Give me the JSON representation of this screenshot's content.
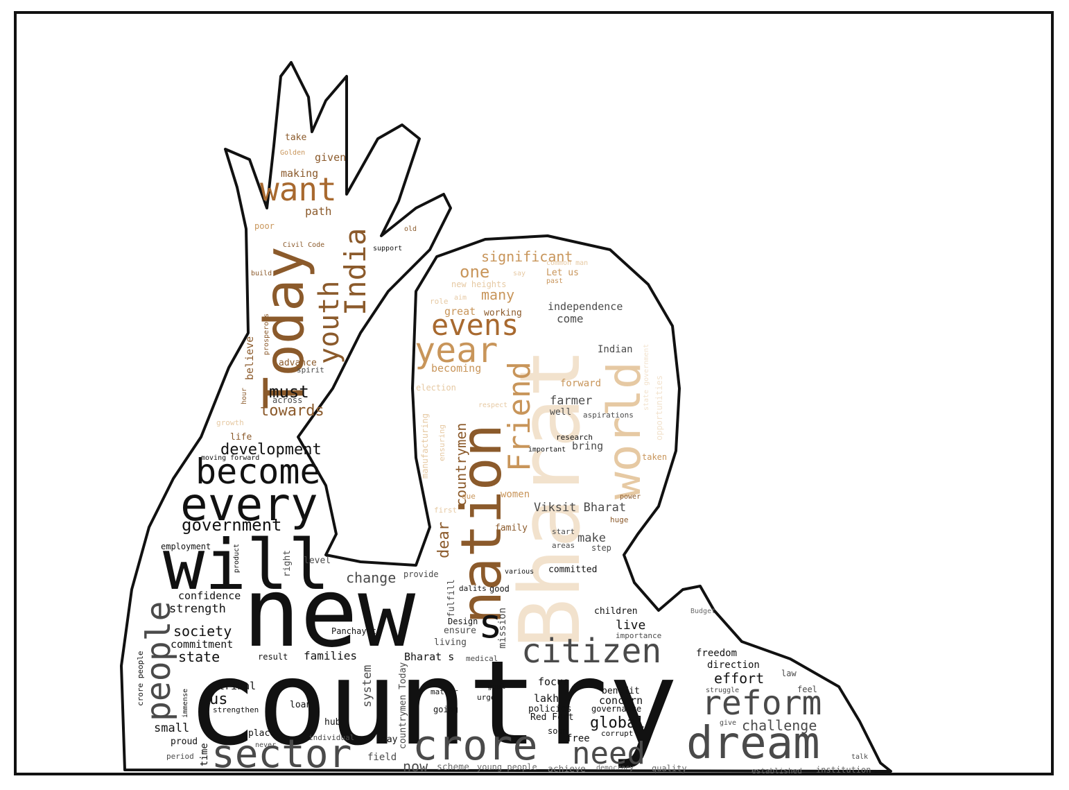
{
  "palette": {
    "black": "#111111",
    "dark_gray": "#4a4a4a",
    "mid_gray": "#6b6b6b",
    "brown": "#8b5a2b",
    "tan": "#c8955a",
    "light_tan": "#e6c9a3",
    "cream": "#f2e2cd"
  },
  "words": {
    "country": "country",
    "new": "new",
    "bharat": "Bharat",
    "will": "will",
    "nation": "nation",
    "today": "Today",
    "every": "every",
    "world": "world",
    "become": "become",
    "dream": "dream",
    "crore": "crore",
    "sector": "sector",
    "citizen": "citizen",
    "reform": "reform",
    "year": "year",
    "want": "want",
    "people": "people",
    "friend": "Friend",
    "evens": "evens",
    "india": "India",
    "youth": "youth",
    "need": "need",
    "government": "government",
    "development": "development",
    "s": "s",
    "countrymen": "countrymen",
    "dear": "dear",
    "significant": "significant",
    "one": "one",
    "many": "many",
    "independence": "independence",
    "come": "come",
    "great": "great",
    "working": "working",
    "becoming": "becoming",
    "indian": "Indian",
    "forward": "forward",
    "farmer": "farmer",
    "well": "well",
    "aspirations": "aspirations",
    "research": "research",
    "bring": "bring",
    "important": "important",
    "taken": "taken",
    "power": "power",
    "huge": "huge",
    "women": "women",
    "viksit_bharat": "Viksit Bharat",
    "family": "family",
    "start": "start",
    "make": "make",
    "areas": "areas",
    "step": "step",
    "committed": "committed",
    "various": "various",
    "good": "good",
    "must": "must",
    "across": "across",
    "towards": "towards",
    "advance": "advance",
    "spirit": "spirit",
    "believe": "believe",
    "hour": "hour",
    "growth": "growth",
    "life": "life",
    "moving_forward": "moving forward",
    "path": "path",
    "making": "making",
    "given": "given",
    "take": "take",
    "golden": "Golden",
    "poor": "poor",
    "civil_code": "Civil Code",
    "build": "build",
    "prosperous": "prosperous",
    "support": "support",
    "old": "old",
    "common_man": "common man",
    "let_us": "Let us",
    "past": "past",
    "say": "say",
    "new_heights": "new heights",
    "aim": "aim",
    "role": "role",
    "election": "election",
    "respect": "respect",
    "manufacturing": "manufacturing",
    "ensuring": "ensuring",
    "due": "due",
    "first": "first",
    "state_government": "state government",
    "opportunities": "opportunities",
    "employment": "employment",
    "product": "product",
    "right": "right",
    "level": "level",
    "change": "change",
    "provide": "provide",
    "dalits": "dalits",
    "confidence": "confidence",
    "strength": "strength",
    "society": "society",
    "commitment": "commitment",
    "state": "state",
    "fulfill": "fulfill",
    "design": "Design",
    "mission": "mission",
    "panchayat": "Panchayat",
    "ensure": "ensure",
    "living": "living",
    "children": "children",
    "live": "live",
    "importance": "importance",
    "budget": "Budget",
    "freedom": "freedom",
    "direction": "direction",
    "effort": "effort",
    "result": "result",
    "families": "families",
    "bharat_s": "Bharat s",
    "medical": "medical",
    "tribal": "tribal",
    "us": "us",
    "strengthen": "strengthen",
    "small": "small",
    "crore_people": "crore people",
    "immense": "immense",
    "system": "system",
    "countrymen_today": "countrymen Today",
    "loan": "loan",
    "hub": "hub",
    "place": "place",
    "individual": "individual",
    "day": "day",
    "proud": "proud",
    "period": "period",
    "never": "never",
    "time": "time",
    "field": "field",
    "now": "now",
    "scheme": "scheme",
    "young_people": "young people",
    "achieve": "achieve",
    "democracy": "democracy",
    "quality": "quality",
    "established": "established",
    "institution": "institution",
    "matter": "matter",
    "goal": "goal",
    "urge": "urge",
    "going": "going",
    "focus": "focus",
    "lakh": "lakh",
    "policies": "policies",
    "red_fort": "Red Fort",
    "soon": "soon",
    "free": "free",
    "benefit": "benefit",
    "concern": "concern",
    "governance": "governance",
    "global": "global",
    "corrupt": "corrupt",
    "challenge": "challenge",
    "law": "law",
    "struggle": "struggle",
    "feel": "feel",
    "give": "give",
    "talk": "talk"
  }
}
